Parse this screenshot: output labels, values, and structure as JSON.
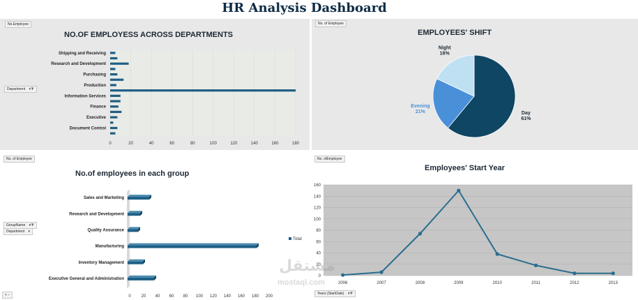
{
  "dashboard": {
    "title": "HR Analysis Dashboard"
  },
  "panels": {
    "departments": {
      "chip_label": "No.Employee",
      "filter_label": "Department",
      "title": "NO.OF EMPLOYESS ACROSS DEPARTMENTS"
    },
    "shift": {
      "chip_label": "No. of Employee",
      "title": "EMPLOYEES' SHIFT"
    },
    "groups": {
      "chip_label": "No. of Employee",
      "filter_label_1": "GroupName",
      "filter_label_2": "Department",
      "title": "No.of employees in each group",
      "legend_label": "Total"
    },
    "start_year": {
      "chip_label": "No. ofEmployee",
      "filter_label": "Years (StartDate)",
      "title": "Employees' Start Year"
    }
  },
  "watermark": {
    "text": "مستقل",
    "sub": "mostaql.com"
  },
  "colors": {
    "dark": "#0e4663",
    "mid": "#4a90d9",
    "light": "#bfe0f3",
    "bar": "#1f5f85",
    "line": "#2a6d8e"
  },
  "chart_data": [
    {
      "type": "bar",
      "orientation": "horizontal",
      "categories": [
        "Shipping and Receiving",
        "",
        "Research and Development",
        "",
        "Purchasing",
        "",
        "Production",
        "",
        "Information Services",
        "",
        "Finance",
        "",
        "Executive",
        "",
        "Document Control",
        ""
      ],
      "category_labels": [
        "Shipping and Receiving",
        "Research and Development",
        "Purchasing",
        "Production",
        "Information Services",
        "Finance",
        "Executive",
        "Document Control"
      ],
      "values": [
        5,
        7,
        18,
        5,
        7,
        13,
        6,
        180,
        10,
        10,
        8,
        11,
        7,
        3,
        7,
        5
      ],
      "xlim": [
        0,
        180
      ],
      "xticks": [
        0,
        20,
        40,
        60,
        80,
        100,
        120,
        140,
        160,
        180
      ],
      "title": "NO.OF EMPLOYESS ACROSS DEPARTMENTS"
    },
    {
      "type": "pie",
      "labels": [
        "Day",
        "Evening",
        "Night"
      ],
      "values": [
        61,
        21,
        18
      ],
      "value_labels": [
        "61%",
        "21%",
        "18%"
      ],
      "colors": [
        "#0e4663",
        "#4a90d9",
        "#bfe0f3"
      ],
      "title": "EMPLOYEES' SHIFT"
    },
    {
      "type": "bar",
      "orientation": "horizontal",
      "categories": [
        "Sales and Marketing",
        "Research and Development",
        "Quality Assurance",
        "Manufacturing",
        "Inventory Management",
        "Executive General and Administration"
      ],
      "values": [
        31,
        18,
        15,
        185,
        22,
        38
      ],
      "xlim": [
        0,
        200
      ],
      "xticks": [
        0,
        20,
        40,
        60,
        80,
        100,
        120,
        140,
        160,
        180,
        200
      ],
      "legend": [
        "Total"
      ],
      "title": "No.of employees in each group"
    },
    {
      "type": "line",
      "x": [
        "2006",
        "2007",
        "2008",
        "2009",
        "2010",
        "2011",
        "2012",
        "2013"
      ],
      "y": [
        1,
        6,
        74,
        150,
        38,
        18,
        4,
        4
      ],
      "ylim": [
        0,
        160
      ],
      "yticks": [
        0,
        20,
        40,
        60,
        80,
        100,
        120,
        140,
        160
      ],
      "grid": true,
      "title": "Employees' Start Year"
    }
  ]
}
